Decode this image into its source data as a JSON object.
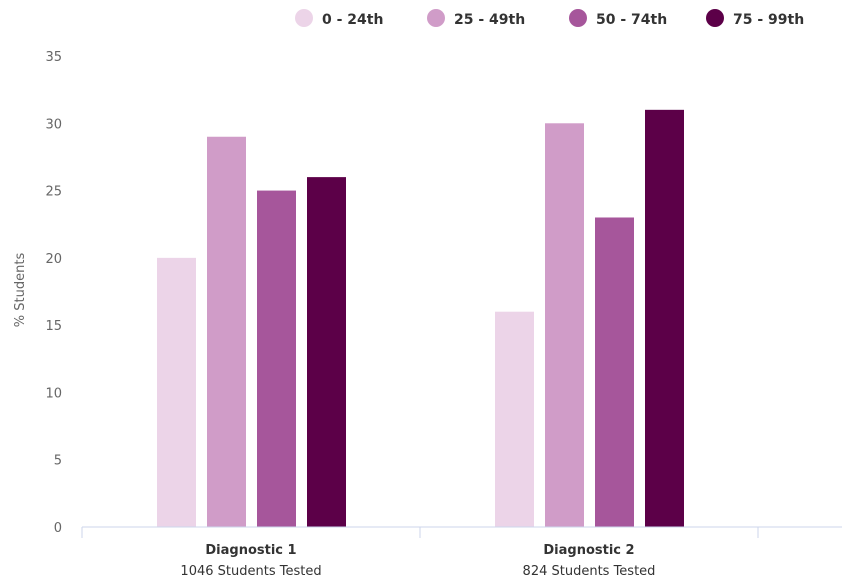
{
  "chart_data": {
    "type": "bar",
    "title": "",
    "ylabel": "% Students",
    "xlabel": "",
    "ylim": [
      0,
      35
    ],
    "yticks": [
      0,
      5,
      10,
      15,
      20,
      25,
      30,
      35
    ],
    "grid": false,
    "legend_position": "top-right",
    "categories": [
      "Diagnostic 1",
      "Diagnostic 2"
    ],
    "category_subtitles": [
      "1046 Students Tested",
      "824 Students Tested"
    ],
    "series": [
      {
        "name": "0 - 24th",
        "color": "#ecd4e8",
        "values": [
          20,
          16
        ]
      },
      {
        "name": "25 - 49th",
        "color": "#d09cc8",
        "values": [
          29,
          30
        ]
      },
      {
        "name": "50 - 74th",
        "color": "#a6569b",
        "values": [
          25,
          23
        ]
      },
      {
        "name": "75 - 99th",
        "color": "#5c0048",
        "values": [
          26,
          31
        ]
      }
    ]
  }
}
